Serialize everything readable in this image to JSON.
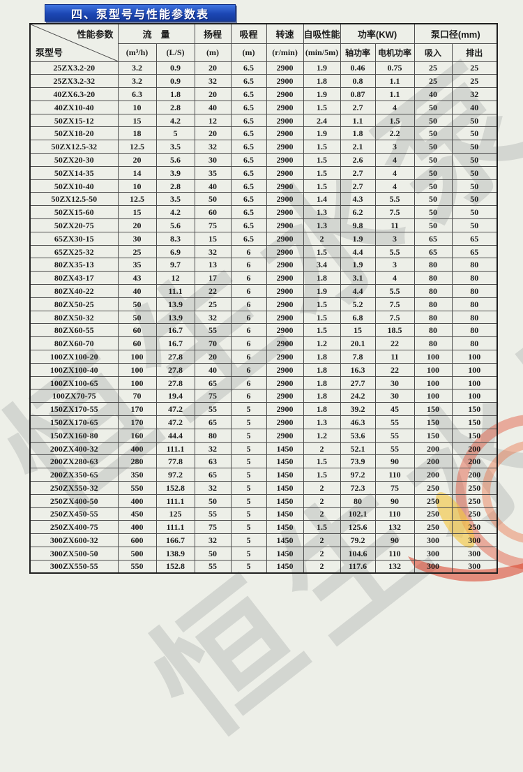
{
  "page": {
    "title": "四、泵型号与性能参数表",
    "watermark_line1": "恒生水泵",
    "watermark_line2": "恒生水泵",
    "colors": {
      "title_bar_blue": "#1c47b4",
      "paper": "#edefe8",
      "watermark_gray": "#b0b2b0",
      "logo_red": "#e2492f",
      "logo_orange": "#ec6a3c",
      "logo_yellow": "#f2c646"
    }
  },
  "table": {
    "header": {
      "corner_top": "性能参数",
      "corner_bottom": "泵型号",
      "col_flow": "流　量",
      "col_flow_m3h": "(m³/h)",
      "col_flow_ls": "(L/S)",
      "col_head": "扬程",
      "col_head_unit": "(m)",
      "col_suction": "吸程",
      "col_suction_unit": "(m)",
      "col_speed": "转速",
      "col_speed_unit": "(r/min)",
      "col_selfprime": "自吸性能",
      "col_selfprime_unit": "(min/5m)",
      "col_power": "功率(KW)",
      "col_power_shaft": "轴功率",
      "col_power_motor": "电机功率",
      "col_diameter": "泵口径(mm)",
      "col_inlet": "吸入",
      "col_outlet": "排出"
    },
    "rows": [
      [
        "25ZX3.2-20",
        "3.2",
        "0.9",
        "20",
        "6.5",
        "2900",
        "1.9",
        "0.46",
        "0.75",
        "25",
        "25"
      ],
      [
        "25ZX3.2-32",
        "3.2",
        "0.9",
        "32",
        "6.5",
        "2900",
        "1.8",
        "0.8",
        "1.1",
        "25",
        "25"
      ],
      [
        "40ZX6.3-20",
        "6.3",
        "1.8",
        "20",
        "6.5",
        "2900",
        "1.9",
        "0.87",
        "1.1",
        "40",
        "32"
      ],
      [
        "40ZX10-40",
        "10",
        "2.8",
        "40",
        "6.5",
        "2900",
        "1.5",
        "2.7",
        "4",
        "50",
        "40"
      ],
      [
        "50ZX15-12",
        "15",
        "4.2",
        "12",
        "6.5",
        "2900",
        "2.4",
        "1.1",
        "1.5",
        "50",
        "50"
      ],
      [
        "50ZX18-20",
        "18",
        "5",
        "20",
        "6.5",
        "2900",
        "1.9",
        "1.8",
        "2.2",
        "50",
        "50"
      ],
      [
        "50ZX12.5-32",
        "12.5",
        "3.5",
        "32",
        "6.5",
        "2900",
        "1.5",
        "2.1",
        "3",
        "50",
        "50"
      ],
      [
        "50ZX20-30",
        "20",
        "5.6",
        "30",
        "6.5",
        "2900",
        "1.5",
        "2.6",
        "4",
        "50",
        "50"
      ],
      [
        "50ZX14-35",
        "14",
        "3.9",
        "35",
        "6.5",
        "2900",
        "1.5",
        "2.7",
        "4",
        "50",
        "50"
      ],
      [
        "50ZX10-40",
        "10",
        "2.8",
        "40",
        "6.5",
        "2900",
        "1.5",
        "2.7",
        "4",
        "50",
        "50"
      ],
      [
        "50ZX12.5-50",
        "12.5",
        "3.5",
        "50",
        "6.5",
        "2900",
        "1.4",
        "4.3",
        "5.5",
        "50",
        "50"
      ],
      [
        "50ZX15-60",
        "15",
        "4.2",
        "60",
        "6.5",
        "2900",
        "1.3",
        "6.2",
        "7.5",
        "50",
        "50"
      ],
      [
        "50ZX20-75",
        "20",
        "5.6",
        "75",
        "6.5",
        "2900",
        "1.3",
        "9.8",
        "11",
        "50",
        "50"
      ],
      [
        "65ZX30-15",
        "30",
        "8.3",
        "15",
        "6.5",
        "2900",
        "2",
        "1.9",
        "3",
        "65",
        "65"
      ],
      [
        "65ZX25-32",
        "25",
        "6.9",
        "32",
        "6",
        "2900",
        "1.5",
        "4.4",
        "5.5",
        "65",
        "65"
      ],
      [
        "80ZX35-13",
        "35",
        "9.7",
        "13",
        "6",
        "2900",
        "3.4",
        "1.9",
        "3",
        "80",
        "80"
      ],
      [
        "80ZX43-17",
        "43",
        "12",
        "17",
        "6",
        "2900",
        "1.8",
        "3.1",
        "4",
        "80",
        "80"
      ],
      [
        "80ZX40-22",
        "40",
        "11.1",
        "22",
        "6",
        "2900",
        "1.9",
        "4.4",
        "5.5",
        "80",
        "80"
      ],
      [
        "80ZX50-25",
        "50",
        "13.9",
        "25",
        "6",
        "2900",
        "1.5",
        "5.2",
        "7.5",
        "80",
        "80"
      ],
      [
        "80ZX50-32",
        "50",
        "13.9",
        "32",
        "6",
        "2900",
        "1.5",
        "6.8",
        "7.5",
        "80",
        "80"
      ],
      [
        "80ZX60-55",
        "60",
        "16.7",
        "55",
        "6",
        "2900",
        "1.5",
        "15",
        "18.5",
        "80",
        "80"
      ],
      [
        "80ZX60-70",
        "60",
        "16.7",
        "70",
        "6",
        "2900",
        "1.2",
        "20.1",
        "22",
        "80",
        "80"
      ],
      [
        "100ZX100-20",
        "100",
        "27.8",
        "20",
        "6",
        "2900",
        "1.8",
        "7.8",
        "11",
        "100",
        "100"
      ],
      [
        "100ZX100-40",
        "100",
        "27.8",
        "40",
        "6",
        "2900",
        "1.8",
        "16.3",
        "22",
        "100",
        "100"
      ],
      [
        "100ZX100-65",
        "100",
        "27.8",
        "65",
        "6",
        "2900",
        "1.8",
        "27.7",
        "30",
        "100",
        "100"
      ],
      [
        "100ZX70-75",
        "70",
        "19.4",
        "75",
        "6",
        "2900",
        "1.8",
        "24.2",
        "30",
        "100",
        "100"
      ],
      [
        "150ZX170-55",
        "170",
        "47.2",
        "55",
        "5",
        "2900",
        "1.8",
        "39.2",
        "45",
        "150",
        "150"
      ],
      [
        "150ZX170-65",
        "170",
        "47.2",
        "65",
        "5",
        "2900",
        "1.3",
        "46.3",
        "55",
        "150",
        "150"
      ],
      [
        "150ZX160-80",
        "160",
        "44.4",
        "80",
        "5",
        "2900",
        "1.2",
        "53.6",
        "55",
        "150",
        "150"
      ],
      [
        "200ZX400-32",
        "400",
        "111.1",
        "32",
        "5",
        "1450",
        "2",
        "52.1",
        "55",
        "200",
        "200"
      ],
      [
        "200ZX280-63",
        "280",
        "77.8",
        "63",
        "5",
        "1450",
        "1.5",
        "73.9",
        "90",
        "200",
        "200"
      ],
      [
        "200ZX350-65",
        "350",
        "97.2",
        "65",
        "5",
        "1450",
        "1.5",
        "97.2",
        "110",
        "200",
        "200"
      ],
      [
        "250ZX550-32",
        "550",
        "152.8",
        "32",
        "5",
        "1450",
        "2",
        "72.3",
        "75",
        "250",
        "250"
      ],
      [
        "250ZX400-50",
        "400",
        "111.1",
        "50",
        "5",
        "1450",
        "2",
        "80",
        "90",
        "250",
        "250"
      ],
      [
        "250ZX450-55",
        "450",
        "125",
        "55",
        "5",
        "1450",
        "2",
        "102.1",
        "110",
        "250",
        "250"
      ],
      [
        "250ZX400-75",
        "400",
        "111.1",
        "75",
        "5",
        "1450",
        "1.5",
        "125.6",
        "132",
        "250",
        "250"
      ],
      [
        "300ZX600-32",
        "600",
        "166.7",
        "32",
        "5",
        "1450",
        "2",
        "79.2",
        "90",
        "300",
        "300"
      ],
      [
        "300ZX500-50",
        "500",
        "138.9",
        "50",
        "5",
        "1450",
        "2",
        "104.6",
        "110",
        "300",
        "300"
      ],
      [
        "300ZX550-55",
        "550",
        "152.8",
        "55",
        "5",
        "1450",
        "2",
        "117.6",
        "132",
        "300",
        "300"
      ]
    ]
  }
}
